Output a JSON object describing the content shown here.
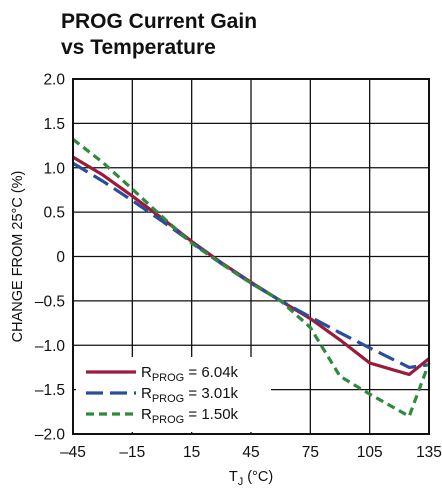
{
  "chart_data": {
    "type": "line",
    "title_lines": [
      "PROG Current Gain",
      "vs Temperature"
    ],
    "xlabel": "T",
    "xlabel_sub": "J",
    "xlabel_unit": " (°C)",
    "ylabel": "CHANGE FROM 25°C (%)",
    "xlim": [
      -45,
      135
    ],
    "ylim": [
      -2.0,
      2.0
    ],
    "x_ticks": [
      -45,
      -15,
      15,
      45,
      75,
      105,
      135
    ],
    "x_tick_labels": [
      "–45",
      "–15",
      "15",
      "45",
      "75",
      "105",
      "135"
    ],
    "y_ticks": [
      2.0,
      1.5,
      1.0,
      0.5,
      0,
      -0.5,
      -1.0,
      -1.5,
      -2.0
    ],
    "y_tick_labels": [
      "2.0",
      "1.5",
      "1.0",
      "0.5",
      "0",
      "–0.5",
      "–1.0",
      "–1.5",
      "–2.0"
    ],
    "grid": true,
    "legend_position": "bottom-left",
    "series": [
      {
        "name": "6.04k",
        "legend_prefix": "R",
        "legend_sub": "PROG",
        "legend_suffix": " = 6.04k",
        "color": "#9b1b3a",
        "dash": "solid",
        "x": [
          -45,
          -30,
          -15,
          0,
          15,
          30,
          45,
          60,
          75,
          90,
          105,
          125,
          135
        ],
        "y": [
          1.12,
          0.92,
          0.68,
          0.43,
          0.17,
          -0.07,
          -0.29,
          -0.5,
          -0.7,
          -0.94,
          -1.2,
          -1.33,
          -1.15
        ]
      },
      {
        "name": "3.01k",
        "legend_prefix": "R",
        "legend_sub": "PROG",
        "legend_suffix": " = 3.01k",
        "color": "#2a4d9e",
        "dash": "long",
        "x": [
          -45,
          -30,
          -15,
          0,
          15,
          30,
          45,
          60,
          75,
          90,
          105,
          125,
          135
        ],
        "y": [
          1.05,
          0.85,
          0.63,
          0.4,
          0.16,
          -0.08,
          -0.3,
          -0.5,
          -0.68,
          -0.86,
          -1.03,
          -1.25,
          -1.22
        ]
      },
      {
        "name": "1.50k",
        "legend_prefix": "R",
        "legend_sub": "PROG",
        "legend_suffix": " = 1.50k",
        "color": "#2f8a3e",
        "dash": "short",
        "x": [
          -45,
          -30,
          -15,
          0,
          15,
          30,
          45,
          60,
          75,
          90,
          105,
          125,
          135
        ],
        "y": [
          1.32,
          1.06,
          0.76,
          0.45,
          0.15,
          -0.08,
          -0.3,
          -0.5,
          -0.8,
          -1.35,
          -1.55,
          -1.8,
          -1.2
        ]
      }
    ]
  }
}
